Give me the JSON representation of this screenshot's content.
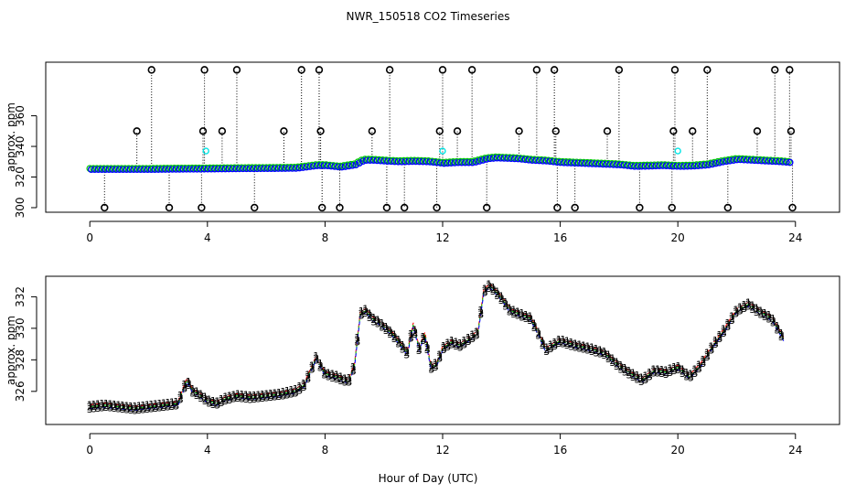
{
  "title": "NWR_150518  CO2 Timeseries",
  "xlabel": "Hour of Day (UTC)",
  "colors": {
    "raw": "#000000",
    "cyan": "#00e5e5",
    "s1": "#ff0000",
    "s2": "#00cc00",
    "s3": "#0000ff"
  },
  "chart_data": [
    {
      "type": "scatter",
      "panel": "top",
      "ylabel": "approx. ppm",
      "xlim": [
        -1.5,
        25.5
      ],
      "ylim": [
        297,
        395
      ],
      "xticks": [
        "0",
        "4",
        "8",
        "12",
        "16",
        "20",
        "24"
      ],
      "yticks": [
        "300",
        "320",
        "340",
        "360"
      ],
      "baseline_series": {
        "description": "dense blue/green/red circles tracking baseline CO2",
        "hours": [
          0,
          1,
          2,
          3,
          4,
          5,
          6,
          7,
          7.7,
          8,
          8.5,
          9,
          9.3,
          9.6,
          10,
          10.5,
          11,
          11.5,
          12,
          12.5,
          13,
          13.5,
          13.8,
          14.5,
          15,
          15.5,
          16,
          17,
          18,
          18.5,
          19,
          19.5,
          20,
          20.5,
          21,
          21.5,
          22,
          22.5,
          23,
          23.5,
          23.8
        ],
        "values": [
          325,
          325,
          325,
          325.2,
          325.3,
          325.5,
          325.6,
          325.8,
          327.5,
          327.5,
          326.5,
          328,
          331,
          331,
          330.5,
          330,
          330.3,
          330,
          329,
          329.5,
          329.5,
          332,
          332.5,
          332,
          331,
          330.5,
          329.5,
          328.8,
          328,
          327,
          327.2,
          327.5,
          327,
          327.2,
          328,
          330,
          331.5,
          331,
          330.5,
          330,
          329.5
        ]
      },
      "spikes_high": [
        2.1,
        3.9,
        5.0,
        7.2,
        7.8,
        10.2,
        12.0,
        13.0,
        15.2,
        15.8,
        18.0,
        19.9,
        21.0,
        23.3,
        23.8
      ],
      "spikes_mid": [
        1.6,
        3.85,
        4.5,
        6.6,
        7.85,
        9.6,
        11.9,
        12.5,
        14.6,
        15.85,
        17.6,
        19.85,
        20.5,
        22.7,
        23.85
      ],
      "spikes_low": [
        0.5,
        2.7,
        3.8,
        5.6,
        7.9,
        8.5,
        10.1,
        10.7,
        11.8,
        13.5,
        15.9,
        16.5,
        18.7,
        19.8,
        21.7,
        23.9
      ],
      "spike_values": {
        "high": 390,
        "mid": 350,
        "low": 300
      }
    },
    {
      "type": "scatter",
      "panel": "bottom",
      "ylabel": "approx. ppm",
      "xlim": [
        -1.5,
        25.5
      ],
      "ylim": [
        323.9,
        333.3
      ],
      "xticks": [
        "0",
        "4",
        "8",
        "12",
        "16",
        "20",
        "24"
      ],
      "yticks": [
        "326",
        "328",
        "330",
        "332"
      ],
      "series": [
        {
          "name": "1",
          "marker": "1",
          "color": "red"
        },
        {
          "name": "2",
          "marker": "2",
          "color": "green"
        },
        {
          "name": "3",
          "marker": "3",
          "color": "blue"
        }
      ],
      "x": [
        0,
        0.5,
        1,
        1.5,
        2,
        2.5,
        3,
        3.3,
        3.5,
        3.7,
        4,
        4.3,
        4.6,
        5,
        5.5,
        6,
        6.5,
        7,
        7.3,
        7.7,
        8,
        8.4,
        8.8,
        9.0,
        9.2,
        9.4,
        9.6,
        9.8,
        10.0,
        10.3,
        10.6,
        10.8,
        11.0,
        11.2,
        11.4,
        11.6,
        11.8,
        12.0,
        12.3,
        12.6,
        12.9,
        13.2,
        13.4,
        13.6,
        13.8,
        14.0,
        14.3,
        14.6,
        15.0,
        15.3,
        15.5,
        16.0,
        16.5,
        17.0,
        17.5,
        18.0,
        18.4,
        18.8,
        19.2,
        19.6,
        20.0,
        20.4,
        20.8,
        21.2,
        21.6,
        22.0,
        22.4,
        22.8,
        23.2,
        23.6
      ],
      "values": [
        324.9,
        325.0,
        324.9,
        324.8,
        324.9,
        325.0,
        325.1,
        326.6,
        325.9,
        325.7,
        325.3,
        325.1,
        325.4,
        325.6,
        325.5,
        325.6,
        325.7,
        325.9,
        326.3,
        328.0,
        327.0,
        326.8,
        326.5,
        327.5,
        330.8,
        331.0,
        330.5,
        330.3,
        330.0,
        329.5,
        328.8,
        328.3,
        330.1,
        328.6,
        329.5,
        327.4,
        327.6,
        328.6,
        329.0,
        328.8,
        329.2,
        329.6,
        332.2,
        332.6,
        332.2,
        331.8,
        331.0,
        330.8,
        330.5,
        329.4,
        328.5,
        329.1,
        328.8,
        328.6,
        328.3,
        327.5,
        327.0,
        326.6,
        327.2,
        327.1,
        327.4,
        326.8,
        327.6,
        328.8,
        329.8,
        331.0,
        331.4,
        330.9,
        330.5,
        329.2
      ]
    }
  ]
}
